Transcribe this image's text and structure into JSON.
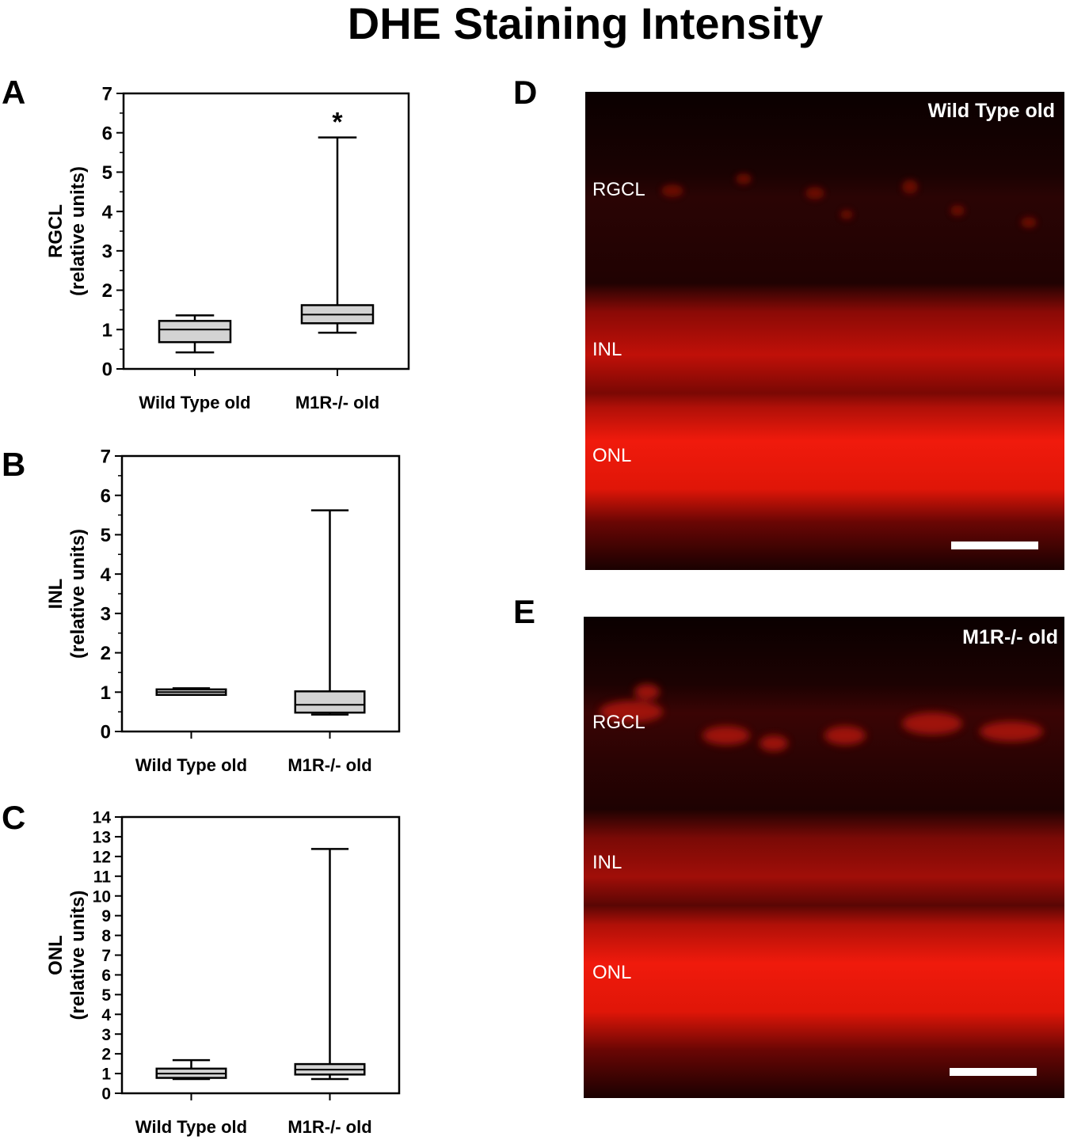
{
  "figure": {
    "title": "DHE Staining Intensity"
  },
  "chart_data": [
    {
      "panel": "A",
      "type": "box",
      "ylabel_line1": "RGCL",
      "ylabel_line2": "(relative units)",
      "ylim": [
        0,
        7
      ],
      "yticks": [
        0,
        1,
        2,
        3,
        4,
        5,
        6,
        7
      ],
      "categories": [
        "Wild Type old",
        "M1R-/- old"
      ],
      "boxes": [
        {
          "category": "Wild Type old",
          "min": 0.42,
          "q1": 0.68,
          "median": 1.0,
          "q3": 1.22,
          "max": 1.36
        },
        {
          "category": "M1R-/- old",
          "min": 0.92,
          "q1": 1.16,
          "median": 1.38,
          "q3": 1.62,
          "max": 5.88
        }
      ],
      "annotation": "*",
      "annotation_category": "M1R-/- old"
    },
    {
      "panel": "B",
      "type": "box",
      "ylabel_line1": "INL",
      "ylabel_line2": "(relative units)",
      "ylim": [
        0,
        7
      ],
      "yticks": [
        0,
        1,
        2,
        3,
        4,
        5,
        6,
        7
      ],
      "categories": [
        "Wild Type old",
        "M1R-/- old"
      ],
      "boxes": [
        {
          "category": "Wild Type old",
          "min": 0.93,
          "q1": 0.93,
          "median": 1.0,
          "q3": 1.07,
          "max": 1.1
        },
        {
          "category": "M1R-/- old",
          "min": 0.43,
          "q1": 0.48,
          "median": 0.68,
          "q3": 1.02,
          "max": 5.62
        }
      ]
    },
    {
      "panel": "C",
      "type": "box",
      "ylabel_line1": "ONL",
      "ylabel_line2": "(relative units)",
      "ylim": [
        0,
        14
      ],
      "yticks": [
        0,
        1,
        2,
        3,
        4,
        5,
        6,
        7,
        8,
        9,
        10,
        11,
        12,
        13,
        14
      ],
      "categories": [
        "Wild Type old",
        "M1R-/- old"
      ],
      "boxes": [
        {
          "category": "Wild Type old",
          "min": 0.72,
          "q1": 0.78,
          "median": 1.0,
          "q3": 1.25,
          "max": 1.68
        },
        {
          "category": "M1R-/- old",
          "min": 0.72,
          "q1": 0.95,
          "median": 1.2,
          "q3": 1.48,
          "max": 12.38
        }
      ]
    }
  ],
  "micrographs": [
    {
      "panel": "D",
      "title": "Wild Type old",
      "layers": [
        "RGCL",
        "INL",
        "ONL"
      ]
    },
    {
      "panel": "E",
      "title": "M1R-/- old",
      "layers": [
        "RGCL",
        "INL",
        "ONL"
      ]
    }
  ],
  "colors": {
    "box_fill": "#d3d3d3",
    "stain": "#ff1a0a",
    "background_dark": "#0b0000"
  }
}
